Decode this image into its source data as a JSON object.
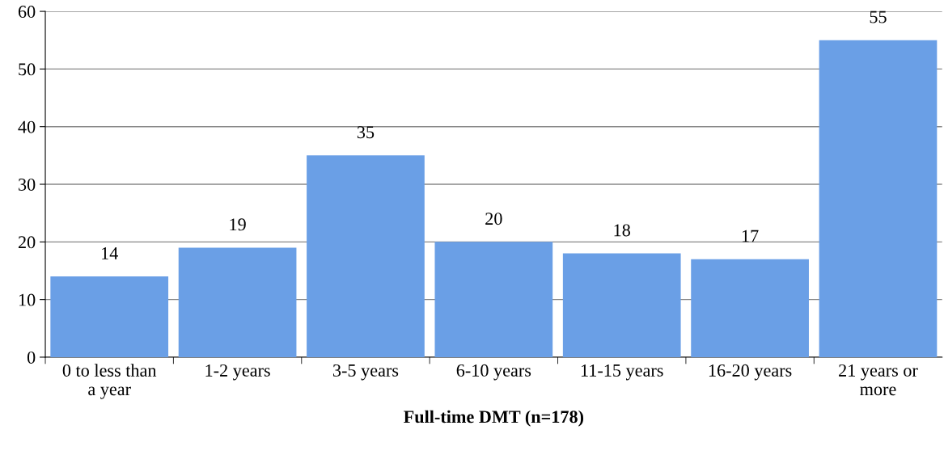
{
  "chart_data": {
    "type": "bar",
    "xlabel": "Full-time DMT (n=178)",
    "categories": [
      "0 to less than\na year",
      "1-2 years",
      "3-5 years",
      "6-10 years",
      "11-15 years",
      "16-20 years",
      "21 years or\nmore"
    ],
    "values": [
      14,
      19,
      35,
      20,
      18,
      17,
      55
    ],
    "color": "#6a9fe6",
    "ylim": [
      0,
      60
    ],
    "yticks": [
      0,
      10,
      20,
      30,
      40,
      50,
      60
    ],
    "grid": "y",
    "data_labels": true
  }
}
